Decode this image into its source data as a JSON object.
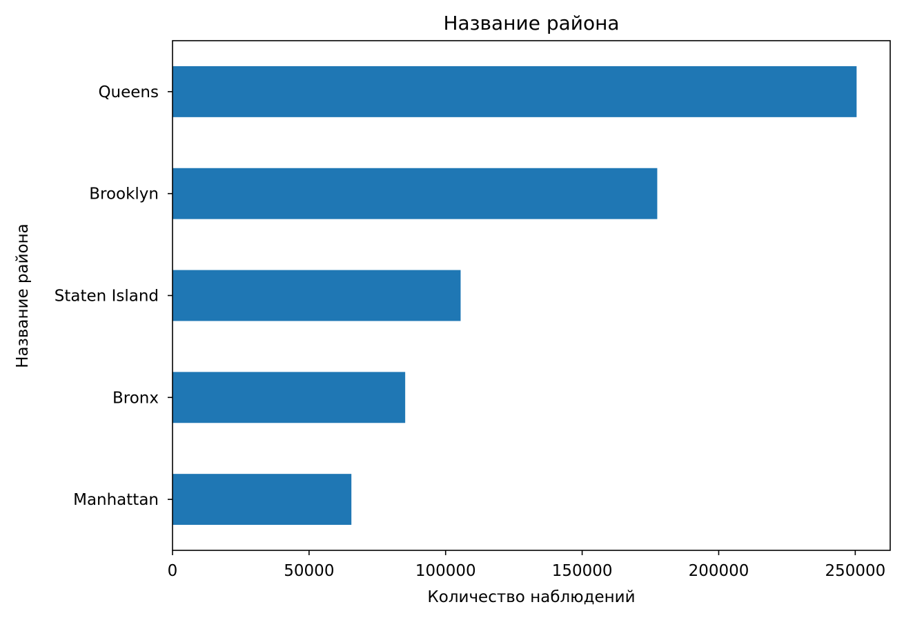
{
  "chart_data": {
    "type": "bar",
    "orientation": "horizontal",
    "title": "Название района",
    "xlabel": "Количество наблюдений",
    "ylabel": "Название района",
    "categories": [
      "Queens",
      "Brooklyn",
      "Staten Island",
      "Bronx",
      "Manhattan"
    ],
    "values": [
      250500,
      177500,
      105500,
      85200,
      65500
    ],
    "xlim": [
      0,
      262800
    ],
    "xticks": [
      0,
      50000,
      100000,
      150000,
      200000,
      250000
    ],
    "xtick_labels": [
      "0",
      "50000",
      "100000",
      "150000",
      "200000",
      "250000"
    ],
    "grid": false,
    "legend": "none",
    "bar_color": "#1f77b4"
  }
}
